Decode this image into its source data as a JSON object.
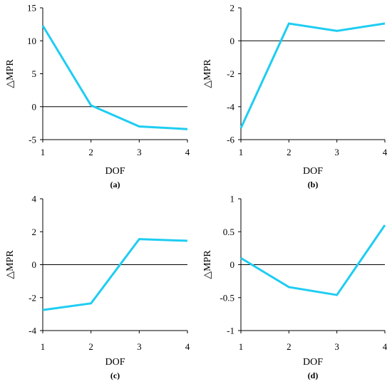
{
  "colors": {
    "series": "#1ecdf2",
    "axis": "#000000"
  },
  "chart_data": [
    {
      "type": "line",
      "panel_label": "(a)",
      "xlabel": "DOF",
      "ylabel": "△MPR",
      "x": [
        1,
        2,
        3,
        4
      ],
      "y": [
        12.3,
        0.2,
        -3.0,
        -3.4
      ],
      "xlim": [
        1,
        4
      ],
      "ylim": [
        -5,
        15
      ],
      "yticks": [
        -5,
        0,
        5,
        10,
        15
      ],
      "xticks": [
        1,
        2,
        3,
        4
      ],
      "zero_line": true,
      "grid": false
    },
    {
      "type": "line",
      "panel_label": "(b)",
      "xlabel": "DOF",
      "ylabel": "△MPR",
      "x": [
        1,
        2,
        3,
        4
      ],
      "y": [
        -5.3,
        1.05,
        0.6,
        1.05
      ],
      "xlim": [
        1,
        4
      ],
      "ylim": [
        -6,
        2
      ],
      "yticks": [
        -6,
        -4,
        -2,
        0,
        2
      ],
      "xticks": [
        1,
        2,
        3,
        4
      ],
      "zero_line": true,
      "grid": false
    },
    {
      "type": "line",
      "panel_label": "(c)",
      "xlabel": "DOF",
      "ylabel": "△MPR",
      "x": [
        1,
        2,
        3,
        4
      ],
      "y": [
        -2.75,
        -2.35,
        1.55,
        1.45
      ],
      "xlim": [
        1,
        4
      ],
      "ylim": [
        -4,
        4
      ],
      "yticks": [
        -4,
        -2,
        0,
        2,
        4
      ],
      "xticks": [
        1,
        2,
        3,
        4
      ],
      "zero_line": true,
      "grid": false
    },
    {
      "type": "line",
      "panel_label": "(d)",
      "xlabel": "DOF",
      "ylabel": "△MPR",
      "x": [
        1,
        2,
        3,
        4
      ],
      "y": [
        0.1,
        -0.34,
        -0.46,
        0.6
      ],
      "xlim": [
        1,
        4
      ],
      "ylim": [
        -1,
        1
      ],
      "yticks": [
        -1,
        -0.5,
        0,
        0.5,
        1
      ],
      "xticks": [
        1,
        2,
        3,
        4
      ],
      "zero_line": true,
      "grid": false
    }
  ]
}
